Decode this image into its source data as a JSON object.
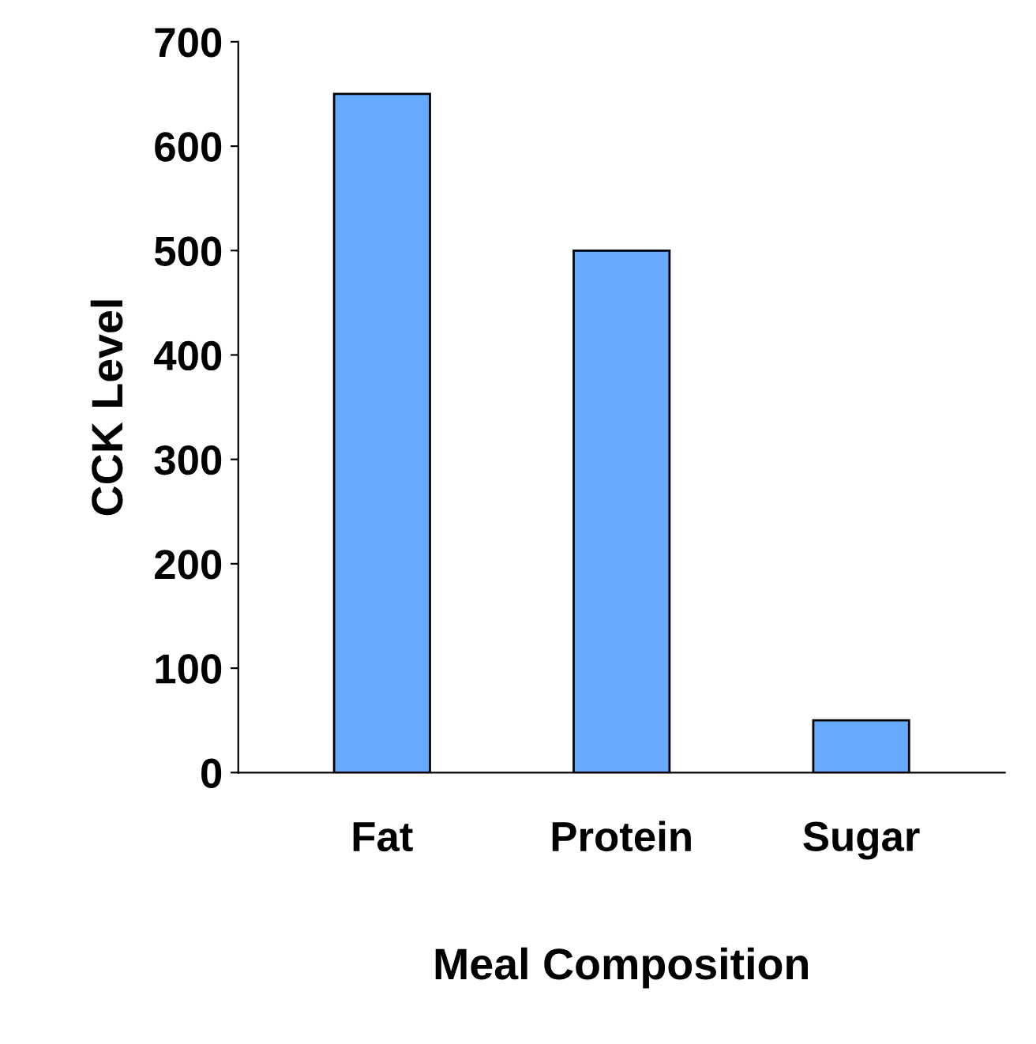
{
  "chart_data": {
    "type": "bar",
    "categories": [
      "Fat",
      "Protein",
      "Sugar"
    ],
    "values": [
      650,
      500,
      50
    ],
    "color": "#66aaff",
    "xlabel": "Meal Composition",
    "ylabel": "CCK Level",
    "ylim": [
      0,
      700
    ],
    "yticks": [
      0,
      100,
      200,
      300,
      400,
      500,
      600,
      700
    ],
    "grid": false,
    "legend": false
  }
}
